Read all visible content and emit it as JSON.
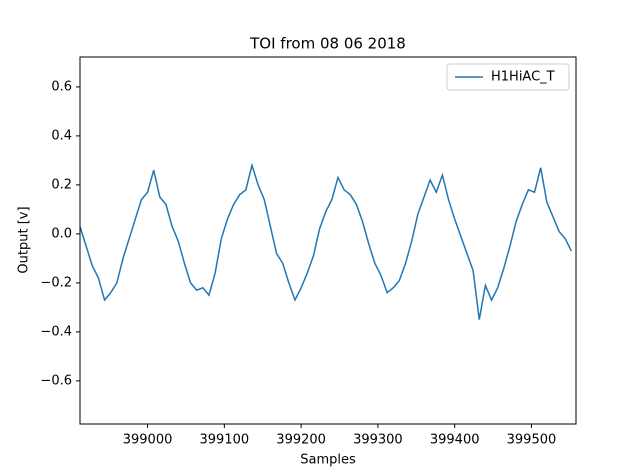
{
  "chart_data": {
    "type": "line",
    "title": "TOI from 08 06 2018",
    "x_label": "Samples",
    "y_label": "Output [v]",
    "x": [
      398912,
      398920,
      398928,
      398936,
      398944,
      398952,
      398960,
      398968,
      398976,
      398984,
      398992,
      399000,
      399008,
      399016,
      399024,
      399032,
      399040,
      399048,
      399056,
      399064,
      399072,
      399080,
      399088,
      399096,
      399104,
      399112,
      399120,
      399128,
      399136,
      399144,
      399152,
      399160,
      399168,
      399176,
      399184,
      399192,
      399200,
      399208,
      399216,
      399224,
      399232,
      399240,
      399248,
      399256,
      399264,
      399272,
      399280,
      399288,
      399296,
      399304,
      399312,
      399320,
      399328,
      399336,
      399344,
      399352,
      399360,
      399368,
      399376,
      399384,
      399392,
      399400,
      399408,
      399416,
      399424,
      399432,
      399440,
      399448,
      399456,
      399464,
      399472,
      399480,
      399488,
      399496,
      399504,
      399512,
      399520,
      399528,
      399536,
      399544,
      399552
    ],
    "series": [
      {
        "name": "H1HiAC_T",
        "color": "#1f77b4",
        "values": [
          0.03,
          -0.05,
          -0.13,
          -0.18,
          -0.27,
          -0.24,
          -0.2,
          -0.1,
          -0.02,
          0.06,
          0.14,
          0.17,
          0.26,
          0.15,
          0.12,
          0.03,
          -0.03,
          -0.12,
          -0.2,
          -0.23,
          -0.22,
          -0.25,
          -0.16,
          -0.02,
          0.06,
          0.12,
          0.16,
          0.18,
          0.28,
          0.2,
          0.14,
          0.03,
          -0.08,
          -0.12,
          -0.2,
          -0.27,
          -0.22,
          -0.16,
          -0.09,
          0.02,
          0.09,
          0.14,
          0.23,
          0.18,
          0.16,
          0.12,
          0.05,
          -0.04,
          -0.12,
          -0.17,
          -0.24,
          -0.22,
          -0.19,
          -0.12,
          -0.03,
          0.08,
          0.15,
          0.22,
          0.17,
          0.24,
          0.14,
          0.06,
          -0.01,
          -0.08,
          -0.15,
          -0.35,
          -0.21,
          -0.27,
          -0.22,
          -0.14,
          -0.05,
          0.05,
          0.12,
          0.18,
          0.17,
          0.27,
          0.13,
          0.07,
          0.01,
          -0.02,
          -0.07
        ]
      }
    ],
    "xlim": [
      398912,
      399558
    ],
    "xticks": [
      399000,
      399100,
      399200,
      399300,
      399400,
      399500
    ],
    "ylim": [
      -0.776,
      0.722
    ],
    "yticks": [
      {
        "value": -0.6,
        "label": "−0.6"
      },
      {
        "value": -0.4,
        "label": "−0.4"
      },
      {
        "value": -0.2,
        "label": "−0.2"
      },
      {
        "value": 0,
        "label": "0.0"
      },
      0.2,
      0.4,
      0.6
    ],
    "legend": "upper right"
  }
}
